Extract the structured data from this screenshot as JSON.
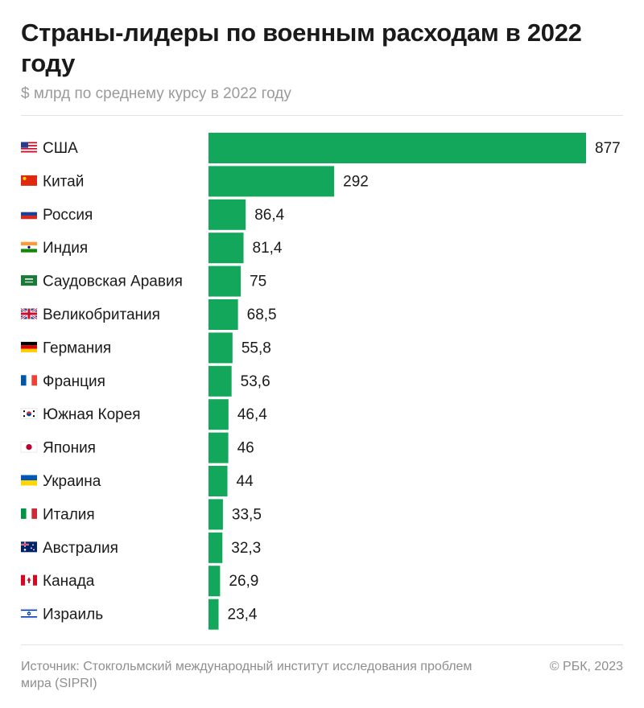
{
  "header": {
    "title": "Страны-лидеры по военным расходам в 2022 году",
    "subtitle": "$ млрд по среднему курсу в 2022 году"
  },
  "footer": {
    "source": "Источник: Стокгольмский международный институт исследования проблем мира (SIPRI)",
    "copyright": "© РБК, 2023"
  },
  "colors": {
    "bar": "#12a75a",
    "text": "#1a1a1a",
    "muted": "#9a9a9a"
  },
  "chart_data": {
    "type": "bar",
    "orientation": "horizontal",
    "title": "Страны-лидеры по военным расходам в 2022 году",
    "subtitle": "$ млрд по среднему курсу в 2022 году",
    "xlabel": "",
    "ylabel": "",
    "grid": false,
    "legend": "none",
    "xlim": [
      0,
      877
    ],
    "categories": [
      "США",
      "Китай",
      "Россия",
      "Индия",
      "Саудовская Аравия",
      "Великобритания",
      "Германия",
      "Франция",
      "Южная Корея",
      "Япония",
      "Украина",
      "Италия",
      "Австралия",
      "Канада",
      "Израиль"
    ],
    "values": [
      877,
      292,
      86.4,
      81.4,
      75,
      68.5,
      55.8,
      53.6,
      46.4,
      46,
      44,
      33.5,
      32.3,
      26.9,
      23.4
    ],
    "value_labels": [
      "877",
      "292",
      "86,4",
      "81,4",
      "75",
      "68,5",
      "55,8",
      "53,6",
      "46,4",
      "46",
      "44",
      "33,5",
      "32,3",
      "26,9",
      "23,4"
    ],
    "flags": [
      "us-flag-icon",
      "china-flag-icon",
      "russia-flag-icon",
      "india-flag-icon",
      "saudi-arabia-flag-icon",
      "uk-flag-icon",
      "germany-flag-icon",
      "france-flag-icon",
      "south-korea-flag-icon",
      "japan-flag-icon",
      "ukraine-flag-icon",
      "italy-flag-icon",
      "australia-flag-icon",
      "canada-flag-icon",
      "israel-flag-icon"
    ]
  }
}
